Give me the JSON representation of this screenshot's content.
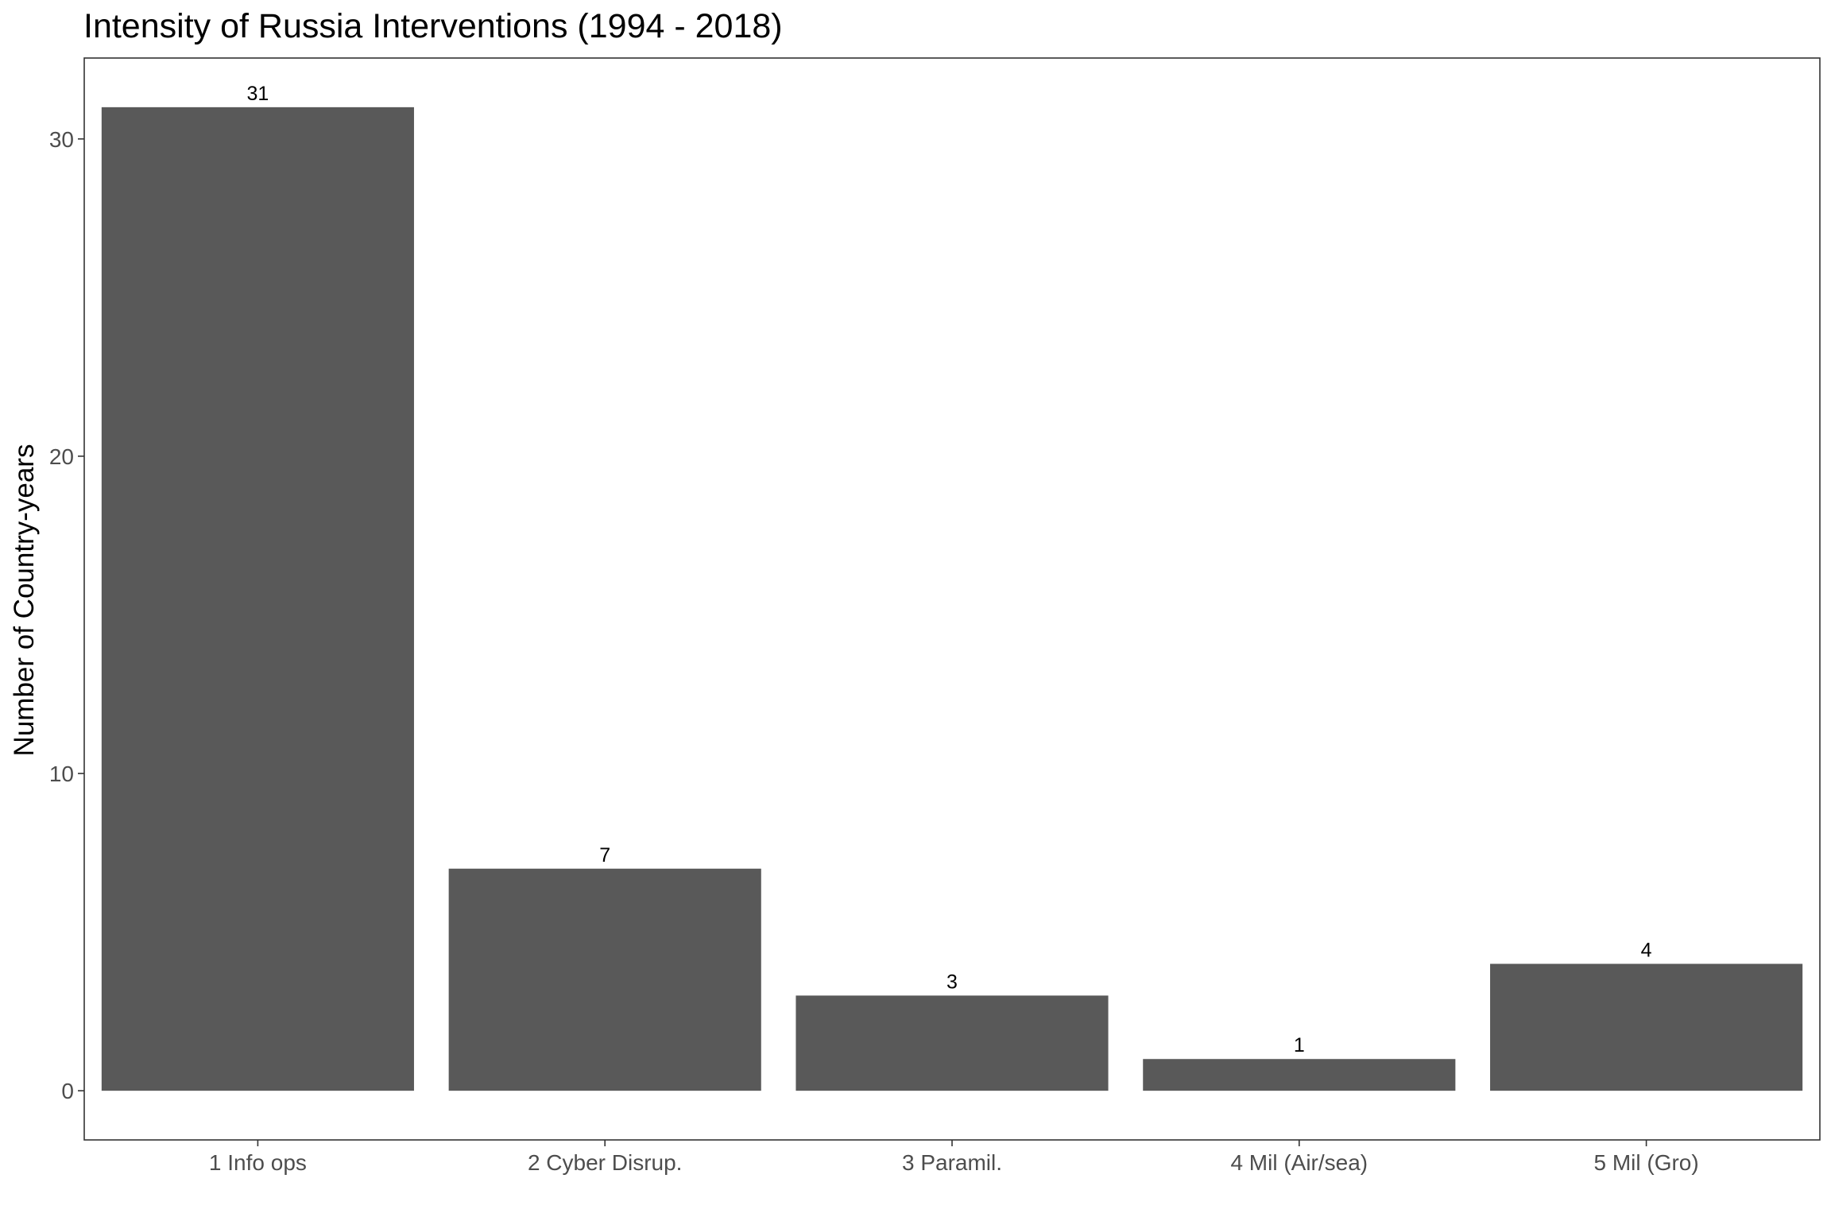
{
  "chart_data": {
    "type": "bar",
    "title": "Intensity of Russia Interventions (1994 - 2018)",
    "xlabel": "",
    "ylabel": "Number of Country-years",
    "categories": [
      "1 Info ops",
      "2 Cyber Disrup.",
      "3 Paramil.",
      "4 Mil (Air/sea)",
      "5 Mil (Gro)"
    ],
    "values": [
      31,
      7,
      3,
      1,
      4
    ],
    "data_labels": [
      "31",
      "7",
      "3",
      "1",
      "4"
    ],
    "ylim": [
      -1.55,
      32.55
    ],
    "yticks": [
      0,
      10,
      20,
      30
    ],
    "ytick_labels": [
      "0",
      "10",
      "20",
      "30"
    ],
    "bar_color": "#595959",
    "panel_border_color": "#333333",
    "grid": false,
    "legend": "none"
  }
}
